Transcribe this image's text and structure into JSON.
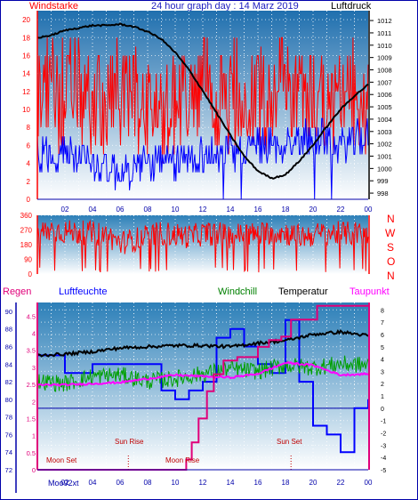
{
  "header": {
    "left_label": "Windstarke",
    "title": "24 hour graph day : 14 Marz 2019",
    "right_label": "Luftdruck"
  },
  "colors": {
    "wind_red": "#ff0000",
    "gust_blue": "#0000ff",
    "pressure_black": "#000000",
    "humidity_blue": "#0000ff",
    "windchill_green": "#00a000",
    "temperature_black": "#000000",
    "dewpoint_magenta": "#ff00ff",
    "regen_magenta": "#e0007a",
    "title_blue": "#2020c0",
    "frame_blue": "#0000aa",
    "panel_top": "#2f86bf",
    "panel_bottom": "#ffffff"
  },
  "panel3_labels": {
    "regen": "Regen",
    "luftfeuchte": "Luftfeuchte",
    "windchill": "Windchill",
    "temperatur": "Temperatur",
    "taupunkt": "Taupunkt"
  },
  "compass_letters": [
    "N",
    "W",
    "S",
    "O",
    "N"
  ],
  "annotations": [
    {
      "text": "Moon Set",
      "hour": 2.5
    },
    {
      "text": "Sun Rise",
      "hour": 6.6
    },
    {
      "text": "Moon Rise",
      "hour": 12.5
    },
    {
      "text": "Sun Set",
      "hour": 18.4
    }
  ],
  "bottom_left_label": "Moo92xt",
  "chart_data": [
    {
      "type": "line",
      "panel": "wind-pressure",
      "x_ticks": [
        "02",
        "04",
        "06",
        "08",
        "10",
        "12",
        "14",
        "16",
        "18",
        "20",
        "22",
        "00"
      ],
      "y_left": {
        "label": "Windstarke",
        "ticks": [
          0,
          2,
          4,
          6,
          8,
          10,
          12,
          14,
          16,
          18,
          20
        ],
        "ylim": [
          0,
          21
        ]
      },
      "y_right": {
        "label": "Luftdruck",
        "ticks": [
          998,
          999,
          1000,
          1001,
          1002,
          1003,
          1004,
          1005,
          1006,
          1007,
          1008,
          1009,
          1010,
          1011,
          1012
        ],
        "ylim": [
          997.5,
          1012.8
        ]
      },
      "series": [
        {
          "name": "",
          "color": "#ff0000",
          "axis": "left",
          "x": [
            0,
            1,
            2,
            3,
            4,
            5,
            6,
            7,
            8,
            9,
            10,
            11,
            12,
            13,
            14,
            15,
            16,
            17,
            18,
            19,
            20,
            21,
            22,
            23,
            24
          ],
          "y": [
            12,
            13,
            12,
            12,
            11,
            11,
            12,
            12,
            11,
            10,
            11,
            11,
            12,
            11,
            11,
            12,
            12,
            12,
            13,
            12,
            12,
            11,
            11,
            12,
            11
          ]
        },
        {
          "name": "",
          "color": "#0000ff",
          "axis": "left",
          "x": [
            0,
            2,
            4,
            6,
            8,
            10,
            12,
            14,
            16,
            18,
            20,
            22,
            24
          ],
          "y": [
            5,
            5,
            4,
            3,
            4,
            4,
            5,
            5,
            6,
            6,
            7,
            6,
            7
          ]
        },
        {
          "name": "Luftdruck",
          "color": "#000000",
          "axis": "right",
          "x": [
            0,
            1,
            2,
            3,
            4,
            5,
            6,
            7,
            8,
            9,
            10,
            11,
            12,
            13,
            14,
            15,
            16,
            17,
            18,
            19,
            20,
            21,
            22,
            23,
            24
          ],
          "y": [
            1010.6,
            1010.8,
            1011.2,
            1011.4,
            1011.6,
            1011.6,
            1011.7,
            1011.5,
            1011.1,
            1010.5,
            1009.4,
            1008.0,
            1006.3,
            1004.5,
            1002.7,
            1001.0,
            999.8,
            999.2,
            999.5,
            1000.6,
            1001.9,
            1003.4,
            1004.8,
            1005.9,
            1006.8
          ]
        }
      ]
    },
    {
      "type": "line",
      "panel": "wind-direction",
      "y": {
        "ticks": [
          0,
          90,
          180,
          270,
          360
        ],
        "ylim": [
          0,
          360
        ]
      },
      "series": [
        {
          "name": "",
          "color": "#ff0000",
          "x": [
            0,
            1,
            2,
            3,
            4,
            5,
            6,
            7,
            8,
            9,
            10,
            11,
            12,
            13,
            14,
            15,
            16,
            17,
            18,
            19,
            20,
            21,
            22,
            23,
            24
          ],
          "y": [
            250,
            270,
            260,
            255,
            250,
            240,
            190,
            210,
            230,
            250,
            240,
            230,
            245,
            250,
            230,
            250,
            240,
            260,
            250,
            230,
            240,
            250,
            250,
            245,
            255
          ]
        }
      ]
    },
    {
      "type": "line",
      "panel": "temperature-humidity",
      "x_ticks": [
        "02",
        "04",
        "06",
        "08",
        "10",
        "12",
        "14",
        "16",
        "18",
        "20",
        "22",
        "00"
      ],
      "y_left_regen": {
        "label": "Regen",
        "ticks": [
          0,
          0.5,
          1,
          1.5,
          2,
          2.5,
          3,
          3.5,
          4,
          4.5
        ],
        "ylim": [
          0,
          4.9
        ]
      },
      "y_left_humidity": {
        "label": "Luftfeuchte",
        "ticks": [
          72,
          74,
          76,
          78,
          80,
          82,
          84,
          86,
          88,
          90
        ],
        "ylim": [
          72,
          91
        ]
      },
      "y_right": {
        "label": "Temperatur",
        "ticks": [
          -5,
          -4,
          -3,
          -2,
          -1,
          0,
          1,
          2,
          3,
          4,
          5,
          6,
          7,
          8
        ],
        "ylim": [
          -5,
          8.6
        ]
      },
      "series": [
        {
          "name": "Luftfeuchte",
          "color": "#0000ff",
          "axis": "humidity",
          "x": [
            0,
            2,
            3,
            4,
            6,
            7,
            8,
            9,
            10,
            11,
            12,
            13,
            14,
            15,
            16,
            17,
            18,
            19,
            20,
            21,
            22,
            23,
            24
          ],
          "y": [
            85,
            83,
            83,
            84,
            84,
            84,
            84,
            81,
            80,
            81,
            82,
            87,
            88,
            86,
            84,
            83,
            89,
            82,
            77,
            76,
            74,
            79,
            80
          ]
        },
        {
          "name": "Windchill",
          "color": "#00a000",
          "axis": "right",
          "x": [
            0,
            2,
            4,
            6,
            8,
            10,
            12,
            14,
            16,
            18,
            20,
            22,
            24
          ],
          "y": [
            2.2,
            2.0,
            2.6,
            2.7,
            2.2,
            2.4,
            2.8,
            3.2,
            3.0,
            3.5,
            3.3,
            3.6,
            3.5
          ]
        },
        {
          "name": "Temperatur",
          "color": "#000000",
          "axis": "right",
          "x": [
            0,
            2,
            4,
            6,
            8,
            10,
            12,
            14,
            16,
            18,
            20,
            22,
            24
          ],
          "y": [
            4.3,
            4.4,
            4.6,
            4.9,
            5.0,
            5.1,
            5.1,
            5.0,
            5.3,
            5.5,
            6.0,
            6.2,
            5.9
          ]
        },
        {
          "name": "Taupunkt",
          "color": "#ff00ff",
          "axis": "right",
          "x": [
            0,
            2,
            4,
            6,
            8,
            10,
            12,
            14,
            16,
            18,
            20,
            22,
            24
          ],
          "y": [
            1.9,
            1.9,
            2.0,
            2.1,
            2.4,
            2.7,
            2.6,
            2.5,
            2.8,
            3.7,
            3.5,
            2.7,
            2.8
          ]
        },
        {
          "name": "Regen",
          "color": "#e0007a",
          "axis": "regen",
          "x": [
            0,
            10.3,
            10.8,
            11.2,
            11.7,
            12.3,
            12.8,
            13.5,
            14.5,
            16.0,
            16.8,
            17.7,
            18.4,
            19.5,
            20.3,
            24
          ],
          "y": [
            0,
            0,
            0.3,
            0.8,
            1.5,
            2.3,
            2.8,
            3.2,
            3.3,
            3.6,
            3.8,
            3.9,
            4.4,
            4.4,
            4.8,
            4.8
          ]
        }
      ]
    }
  ]
}
